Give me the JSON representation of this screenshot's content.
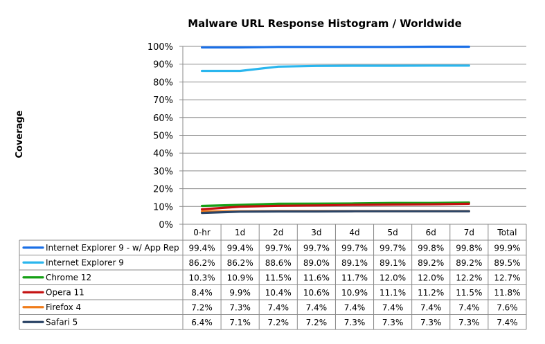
{
  "chart_data": {
    "type": "line",
    "title": "Malware URL Response Histogram / Worldwide",
    "ylabel": "Coverage",
    "ylim": [
      0,
      100
    ],
    "yticks": [
      "0%",
      "10%",
      "20%",
      "30%",
      "40%",
      "50%",
      "60%",
      "70%",
      "80%",
      "90%",
      "100%"
    ],
    "categories": [
      "0-hr",
      "1d",
      "2d",
      "3d",
      "4d",
      "5d",
      "6d",
      "7d",
      "Total"
    ],
    "plotted_points": 8,
    "grid": "horizontal",
    "legend_placement": "data-table-left",
    "series": [
      {
        "name": "Internet Explorer 9 - w/ App Rep",
        "color": "#1a6fe6",
        "values": [
          99.4,
          99.4,
          99.7,
          99.7,
          99.7,
          99.7,
          99.8,
          99.8,
          99.9
        ],
        "labels": [
          "99.4%",
          "99.4%",
          "99.7%",
          "99.7%",
          "99.7%",
          "99.7%",
          "99.8%",
          "99.8%",
          "99.9%"
        ]
      },
      {
        "name": "Internet Explorer 9",
        "color": "#2ab6ee",
        "values": [
          86.2,
          86.2,
          88.6,
          89.0,
          89.1,
          89.1,
          89.2,
          89.2,
          89.5
        ],
        "labels": [
          "86.2%",
          "86.2%",
          "88.6%",
          "89.0%",
          "89.1%",
          "89.1%",
          "89.2%",
          "89.2%",
          "89.5%"
        ]
      },
      {
        "name": "Chrome 12",
        "color": "#16a016",
        "values": [
          10.3,
          10.9,
          11.5,
          11.6,
          11.7,
          12.0,
          12.0,
          12.2,
          12.7
        ],
        "labels": [
          "10.3%",
          "10.9%",
          "11.5%",
          "11.6%",
          "11.7%",
          "12.0%",
          "12.0%",
          "12.2%",
          "12.7%"
        ]
      },
      {
        "name": "Opera 11",
        "color": "#c41010",
        "values": [
          8.4,
          9.9,
          10.4,
          10.6,
          10.9,
          11.1,
          11.2,
          11.5,
          11.8
        ],
        "labels": [
          "8.4%",
          "9.9%",
          "10.4%",
          "10.6%",
          "10.9%",
          "11.1%",
          "11.2%",
          "11.5%",
          "11.8%"
        ]
      },
      {
        "name": "Firefox 4",
        "color": "#f07c1a",
        "values": [
          7.2,
          7.3,
          7.4,
          7.4,
          7.4,
          7.4,
          7.4,
          7.4,
          7.6
        ],
        "labels": [
          "7.2%",
          "7.3%",
          "7.4%",
          "7.4%",
          "7.4%",
          "7.4%",
          "7.4%",
          "7.4%",
          "7.6%"
        ]
      },
      {
        "name": "Safari 5",
        "color": "#2b4466",
        "values": [
          6.4,
          7.1,
          7.2,
          7.2,
          7.3,
          7.3,
          7.3,
          7.3,
          7.4
        ],
        "labels": [
          "6.4%",
          "7.1%",
          "7.2%",
          "7.2%",
          "7.3%",
          "7.3%",
          "7.3%",
          "7.3%",
          "7.4%"
        ]
      }
    ]
  }
}
